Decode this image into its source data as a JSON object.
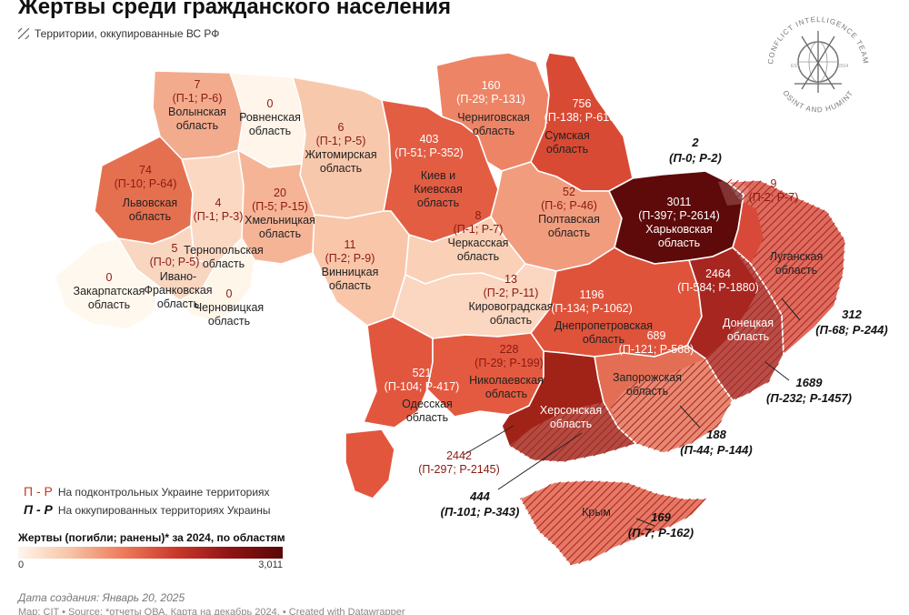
{
  "title": "Жертвы среди гражданского населения",
  "occupied_legend": "Территории, оккупированные ВС РФ",
  "regions": [
    {
      "name": "Волынская\nобласть",
      "total": "7",
      "split": "(П-1; Р-6)"
    },
    {
      "name": "Ровненская\nобласть",
      "total": "0",
      "split": ""
    },
    {
      "name": "Житомирская\nобласть",
      "total": "6",
      "split": "(П-1; Р-5)"
    },
    {
      "name": "Киев и\nКиевская\nобласть",
      "total": "403",
      "split": "(П-51; Р-352)"
    },
    {
      "name": "Черниговская\nобласть",
      "total": "160",
      "split": "(П-29; Р-131)"
    },
    {
      "name": "Сумская\nобласть",
      "total": "756",
      "split": "(П-138; Р-618)"
    },
    {
      "name": "Львовская\nобласть",
      "total": "74",
      "split": "(П-10; Р-64)"
    },
    {
      "name": "Тернопольская\nобласть",
      "total": "4",
      "split": "(П-1; Р-3)"
    },
    {
      "name": "Хмельницкая\nобласть",
      "total": "20",
      "split": "(П-5; Р-15)"
    },
    {
      "name": "Винницкая\nобласть",
      "total": "11",
      "split": "(П-2; Р-9)"
    },
    {
      "name": "Черкасская\nобласть",
      "total": "8",
      "split": "(П-1; Р-7)"
    },
    {
      "name": "Полтавская\nобласть",
      "total": "52",
      "split": "(П-6; Р-46)"
    },
    {
      "name": "Харьковская\nобласть",
      "total": "3011",
      "split": "(П-397; Р-2614)"
    },
    {
      "name": "Ивано-\nФранковская\nобласть",
      "total": "5",
      "split": "(П-0; Р-5)"
    },
    {
      "name": "Закарпатская\nобласть",
      "total": "0",
      "split": ""
    },
    {
      "name": "Черновицкая\nобласть",
      "total": "0",
      "split": ""
    },
    {
      "name": "Кировоградская\nобласть",
      "total": "13",
      "split": "(П-2; Р-11)"
    },
    {
      "name": "Днепропетровская\nобласть",
      "total": "1196",
      "split": "(П-134; Р-1062)"
    },
    {
      "name": "Одесская\nобласть",
      "total": "521",
      "split": "(П-104; Р-417)"
    },
    {
      "name": "Николаевская\nобласть",
      "total": "228",
      "split": "(П-29; Р-199)"
    },
    {
      "name": "Запорожская\nобласть",
      "total": "689",
      "split": "(П-121; Р-568)"
    },
    {
      "name": "Херсонская\nобласть",
      "total": "2442",
      "split": "(П-297; Р-2145)"
    },
    {
      "name": "Донецкая\nобласть",
      "total": "2464",
      "split": "(П-584; Р-1880)"
    },
    {
      "name": "Луганская\nобласть",
      "total": "9",
      "split": "(П-2; Р-7)"
    },
    {
      "name": "Крым",
      "total": "",
      "split": ""
    }
  ],
  "occupied_labels": [
    {
      "total": "2",
      "split": "(П-0; Р-2)"
    },
    {
      "total": "312",
      "split": "(П-68; Р-244)"
    },
    {
      "total": "1689",
      "split": "(П-232; Р-1457)"
    },
    {
      "total": "188",
      "split": "(П-44; Р-144)"
    },
    {
      "total": "444",
      "split": "(П-101; Р-343)"
    },
    {
      "total": "169",
      "split": "(П-7; Р-162)"
    }
  ],
  "key": {
    "controlled_symbol": "П - Р",
    "controlled_text": "На подконтрольных Украине территориях",
    "occupied_symbol": "П - Р",
    "occupied_text": "На оккупированных территориях Украины"
  },
  "scale": {
    "title": "Жертвы (погибли; ранены)* за 2024, по областям",
    "min": "0",
    "max": "3,011"
  },
  "created": "Дата создания: Январь 20, 2025",
  "source": "Map: CIT • Source: *отчеты ОВА. Карта на декабрь 2024. • Created with Datawrapper",
  "logo": {
    "top_text": "CONFLICT INTELLIGENCE TEAM",
    "bottom_text": "OSINT AND HUMINT",
    "est": "EST.",
    "year": "2014"
  },
  "colors": {
    "background": "#ffffff",
    "scale_low": "#fff6ec",
    "scale_high": "#5a0808",
    "hatch": "#b3261e",
    "accent": "#c33a24"
  }
}
